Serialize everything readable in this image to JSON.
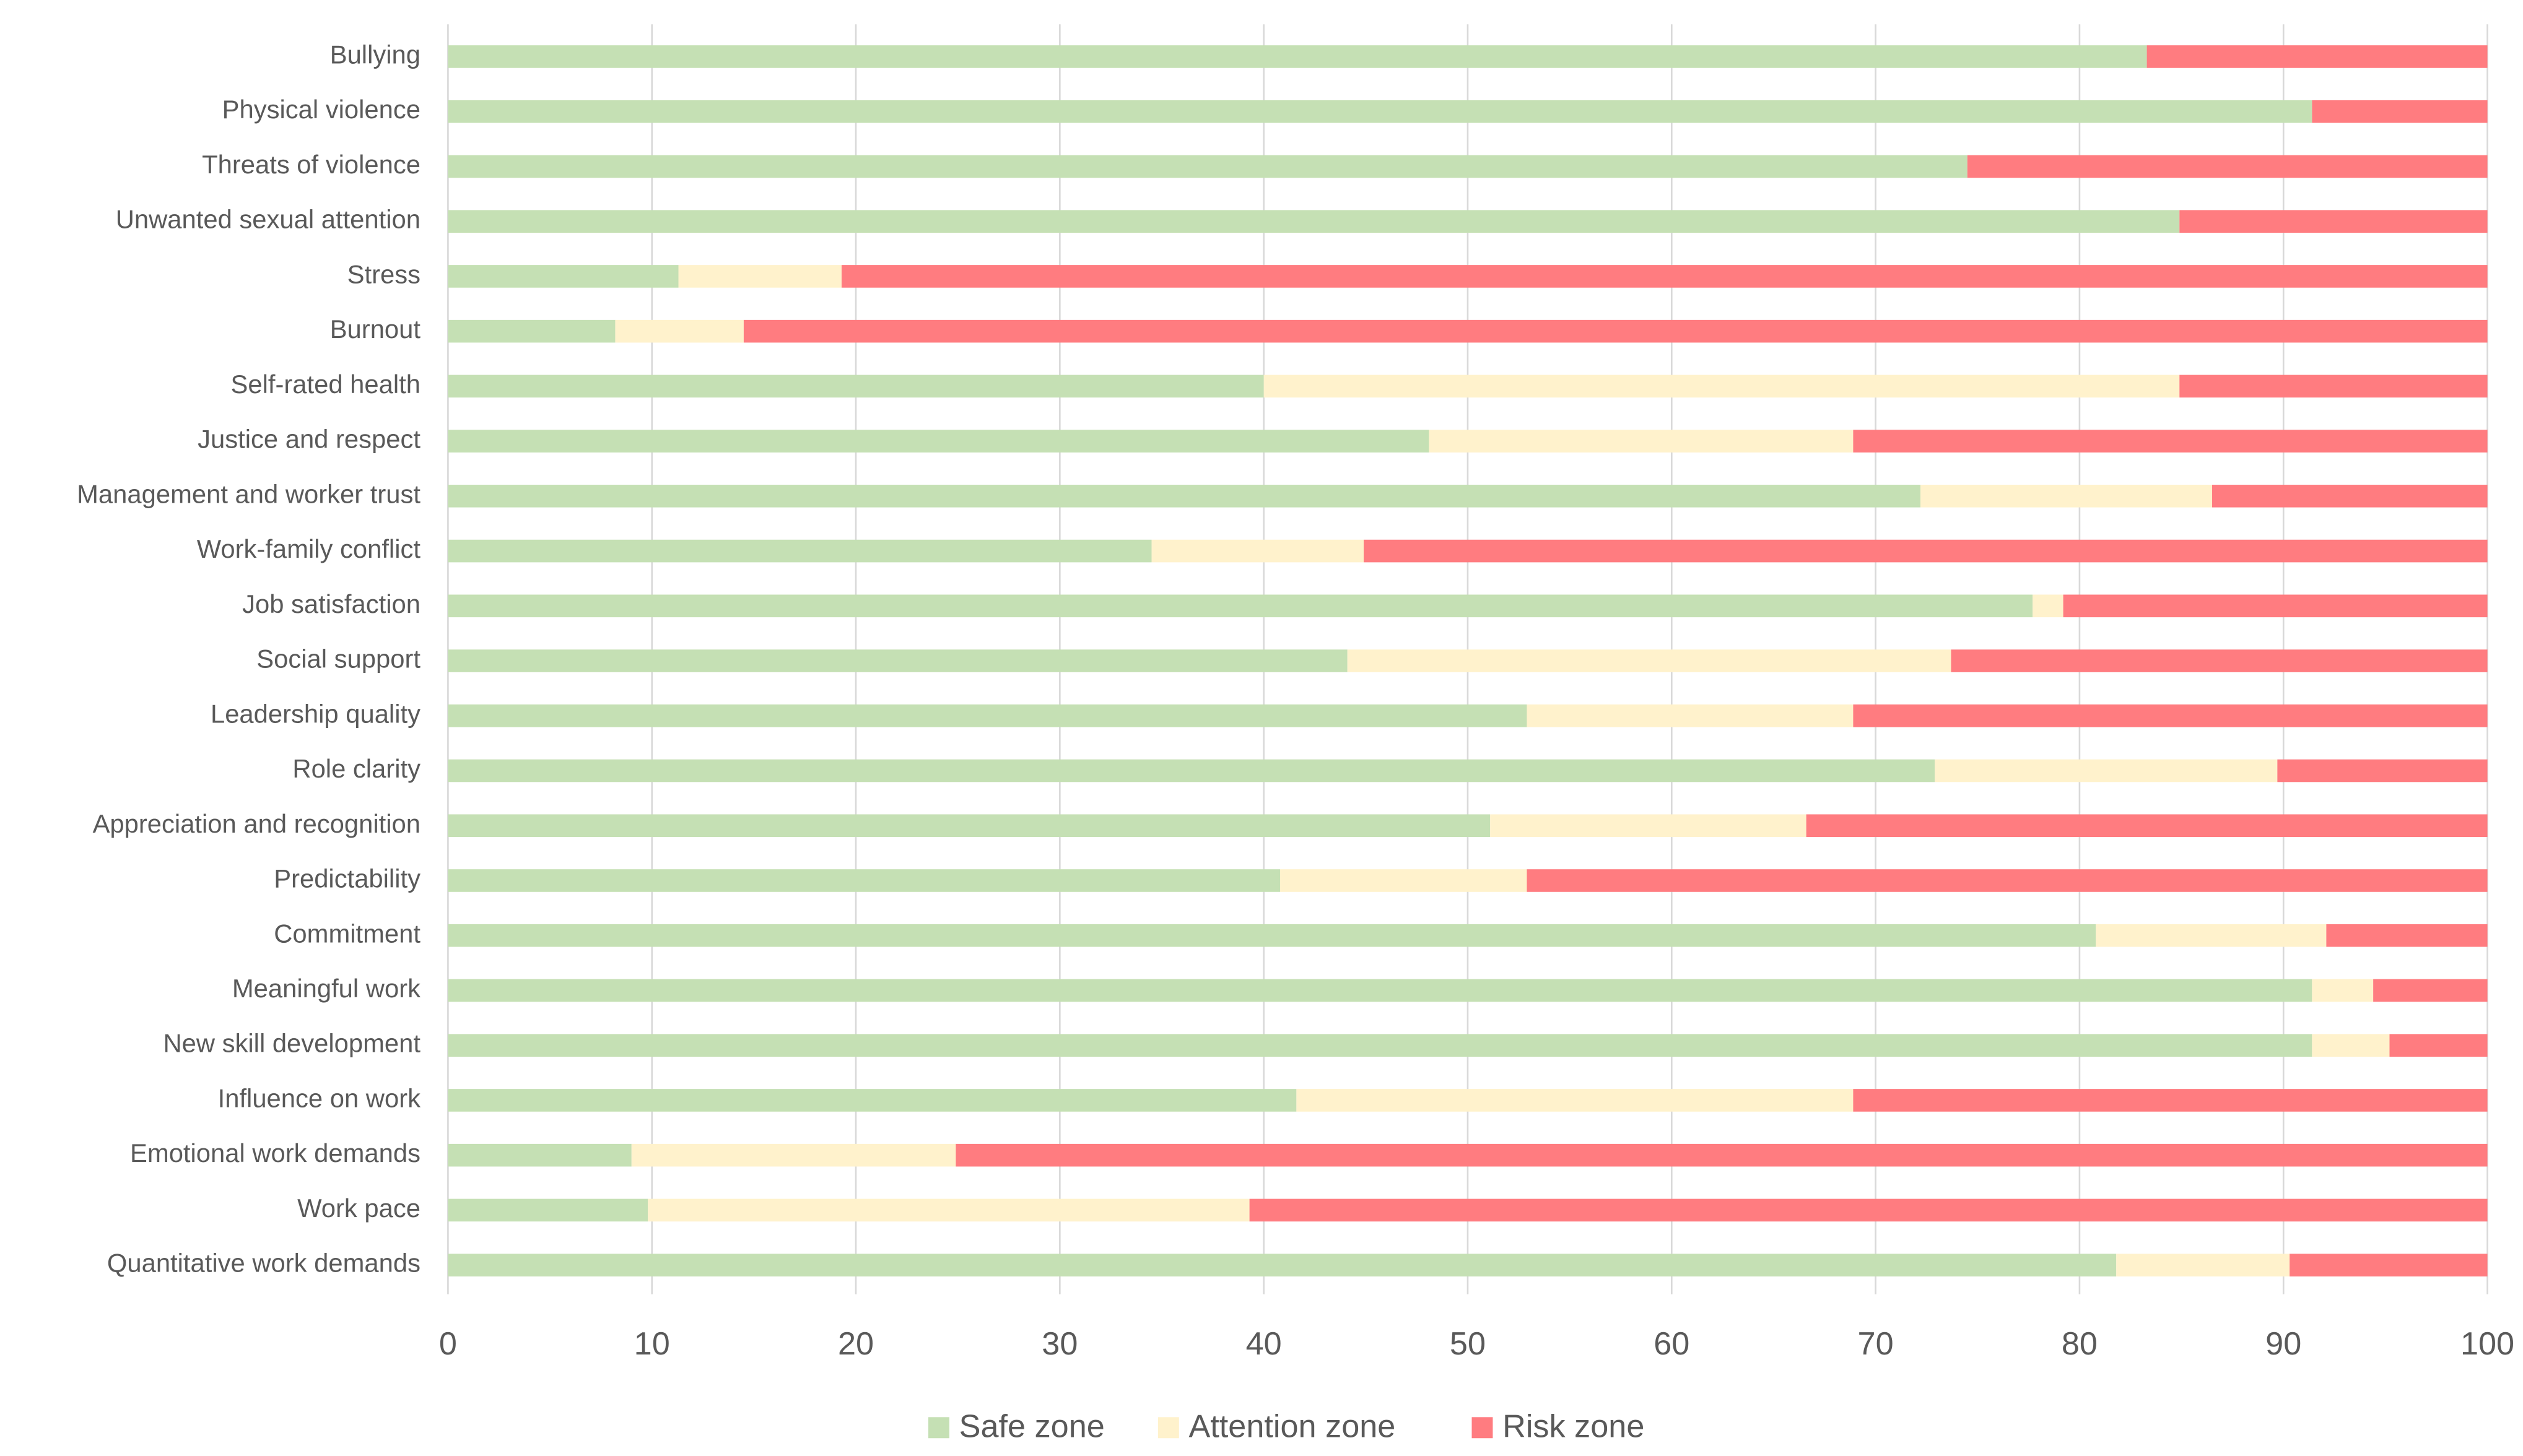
{
  "chart_data": {
    "type": "stacked-barh",
    "categories": [
      "Bullying",
      "Physical violence",
      "Threats of violence",
      "Unwanted sexual attention",
      "Stress",
      "Burnout",
      "Self-rated health",
      "Justice and respect",
      "Management and worker trust",
      "Work-family conflict",
      "Job satisfaction",
      "Social support",
      "Leadership quality",
      "Role clarity",
      "Appreciation and recognition",
      "Predictability",
      "Commitment",
      "Meaningful work",
      "New skill development",
      "Influence on work",
      "Emotional work demands",
      "Work pace",
      "Quantitative work demands"
    ],
    "series": [
      {
        "name": "Safe zone",
        "color": "#c5e0b4",
        "values": [
          83.3,
          91.4,
          74.5,
          84.9,
          11.3,
          8.2,
          40.0,
          48.1,
          72.2,
          34.5,
          77.7,
          44.1,
          52.9,
          72.9,
          51.1,
          40.8,
          80.8,
          91.4,
          91.4,
          41.6,
          9.0,
          9.8,
          81.8
        ]
      },
      {
        "name": "Attention zone",
        "color": "#fff2cc",
        "values": [
          0,
          0,
          0,
          0,
          8.0,
          6.3,
          44.9,
          20.8,
          14.3,
          10.4,
          1.5,
          29.6,
          16.0,
          16.8,
          15.5,
          12.1,
          11.3,
          3.0,
          3.8,
          27.3,
          15.9,
          29.5,
          8.5
        ]
      },
      {
        "name": "Risk zone",
        "color": "#ff7c80",
        "values": [
          16.7,
          8.6,
          25.5,
          15.1,
          80.7,
          85.5,
          15.1,
          31.1,
          13.5,
          55.1,
          20.8,
          26.3,
          31.1,
          10.3,
          33.4,
          47.1,
          7.9,
          5.6,
          4.8,
          31.1,
          75.1,
          60.7,
          9.7
        ]
      }
    ],
    "xlim": [
      0,
      100
    ],
    "xticks": [
      0,
      10,
      20,
      30,
      40,
      50,
      60,
      70,
      80,
      90,
      100
    ],
    "grid": true,
    "legend": "bottom"
  }
}
